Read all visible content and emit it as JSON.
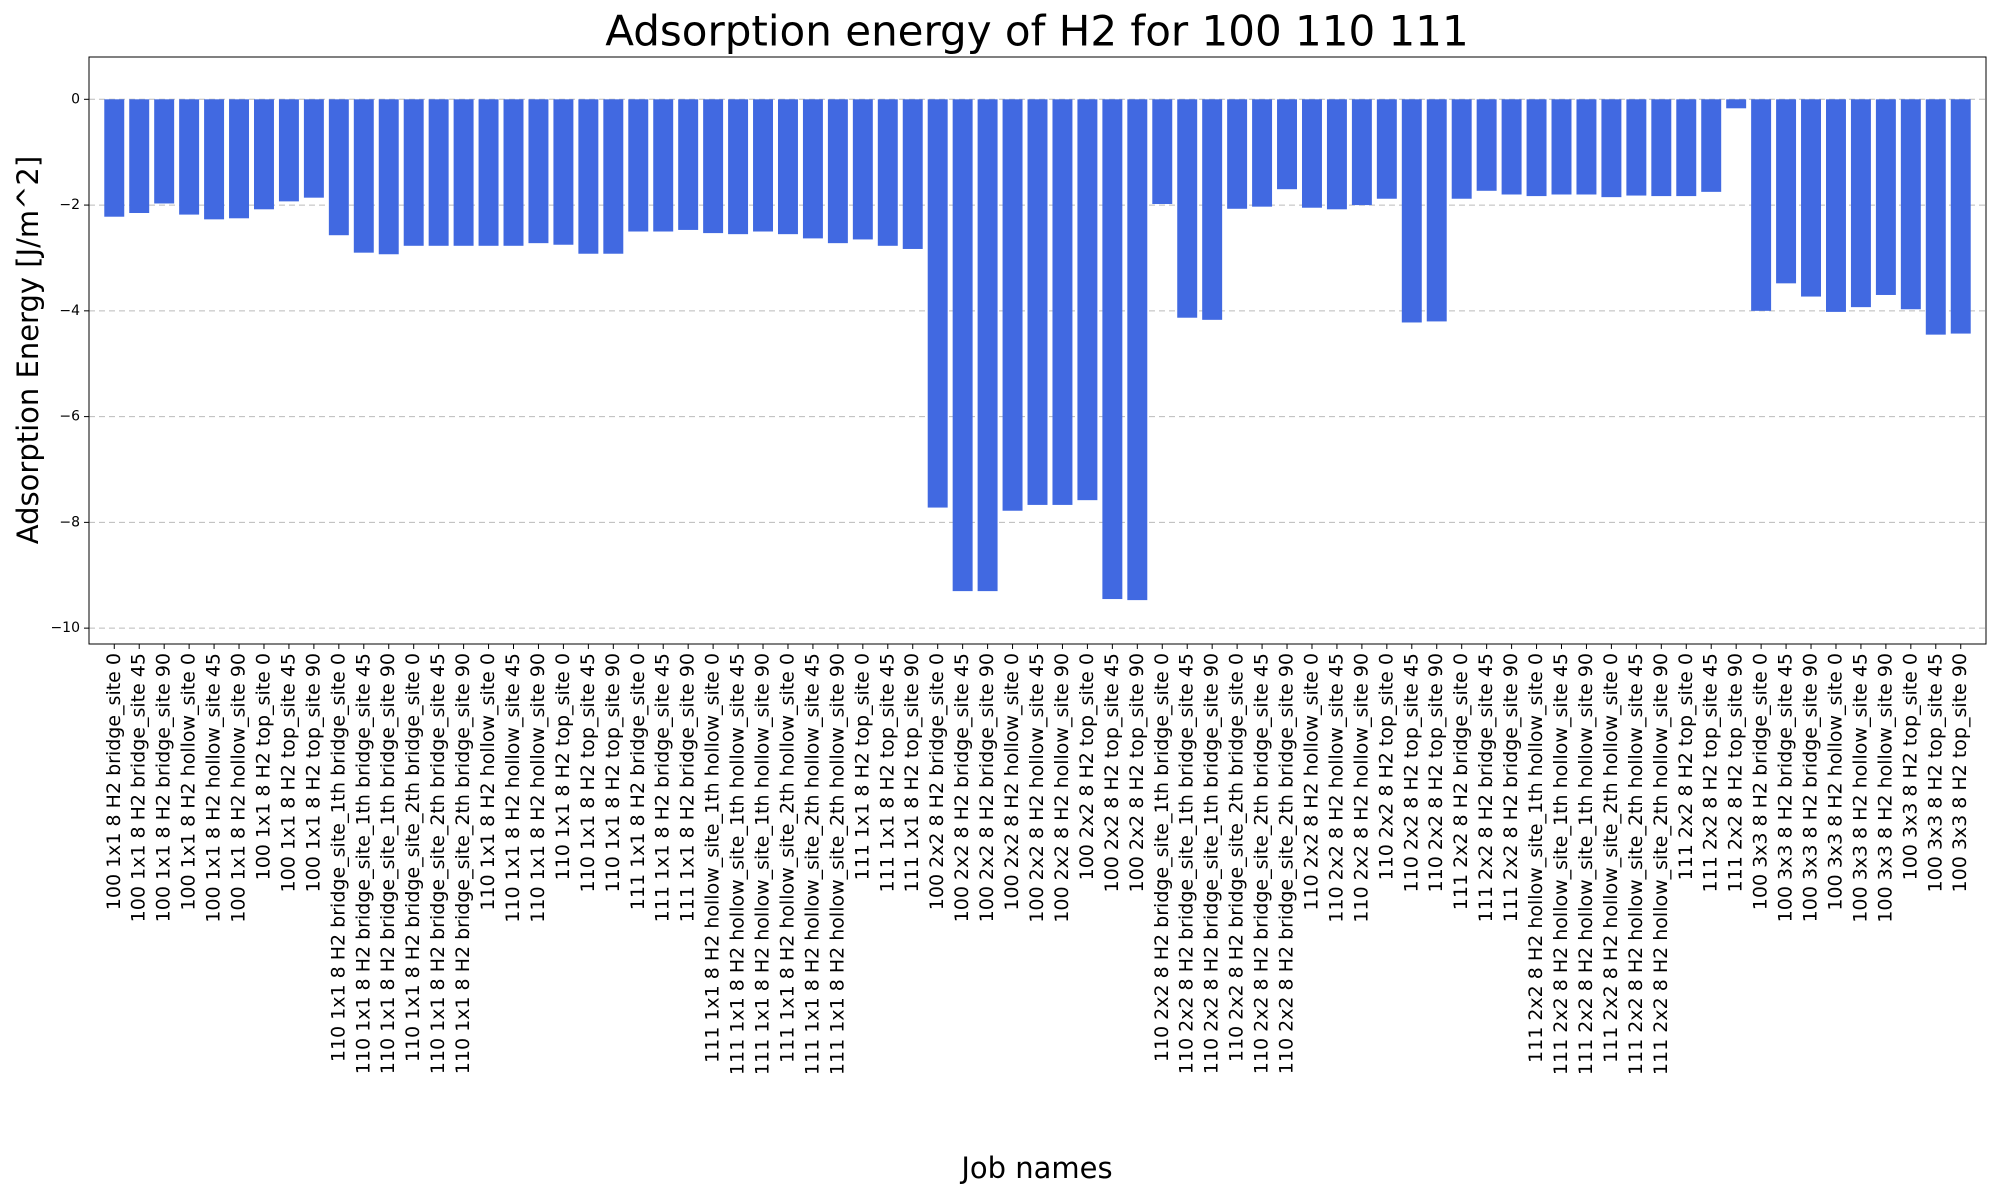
{
  "chart_data": {
    "type": "bar",
    "title": "Adsorption energy of H2 for 100 110 111",
    "x_label": "Job names",
    "y_label": "Adsorption Energy [J/m^2]",
    "categories": [
      "100 1x1 8 H2 bridge_site 0",
      "100 1x1 8 H2 bridge_site 45",
      "100 1x1 8 H2 bridge_site 90",
      "100 1x1 8 H2 hollow_site 0",
      "100 1x1 8 H2 hollow_site 45",
      "100 1x1 8 H2 hollow_site 90",
      "100 1x1 8 H2 top_site 0",
      "100 1x1 8 H2 top_site 45",
      "100 1x1 8 H2 top_site 90",
      "110 1x1 8 H2 bridge_site_1th bridge_site 0",
      "110 1x1 8 H2 bridge_site_1th bridge_site 45",
      "110 1x1 8 H2 bridge_site_1th bridge_site 90",
      "110 1x1 8 H2 bridge_site_2th bridge_site 0",
      "110 1x1 8 H2 bridge_site_2th bridge_site 45",
      "110 1x1 8 H2 bridge_site_2th bridge_site 90",
      "110 1x1 8 H2 hollow_site 0",
      "110 1x1 8 H2 hollow_site 45",
      "110 1x1 8 H2 hollow_site 90",
      "110 1x1 8 H2 top_site 0",
      "110 1x1 8 H2 top_site 45",
      "110 1x1 8 H2 top_site 90",
      "111 1x1 8 H2 bridge_site 0",
      "111 1x1 8 H2 bridge_site 45",
      "111 1x1 8 H2 bridge_site 90",
      "111 1x1 8 H2 hollow_site_1th hollow_site 0",
      "111 1x1 8 H2 hollow_site_1th hollow_site 45",
      "111 1x1 8 H2 hollow_site_1th hollow_site 90",
      "111 1x1 8 H2 hollow_site_2th hollow_site 0",
      "111 1x1 8 H2 hollow_site_2th hollow_site 45",
      "111 1x1 8 H2 hollow_site_2th hollow_site 90",
      "111 1x1 8 H2 top_site 0",
      "111 1x1 8 H2 top_site 45",
      "111 1x1 8 H2 top_site 90",
      "100 2x2 8 H2 bridge_site 0",
      "100 2x2 8 H2 bridge_site 45",
      "100 2x2 8 H2 bridge_site 90",
      "100 2x2 8 H2 hollow_site 0",
      "100 2x2 8 H2 hollow_site 45",
      "100 2x2 8 H2 hollow_site 90",
      "100 2x2 8 H2 top_site 0",
      "100 2x2 8 H2 top_site 45",
      "100 2x2 8 H2 top_site 90",
      "110 2x2 8 H2 bridge_site_1th bridge_site 0",
      "110 2x2 8 H2 bridge_site_1th bridge_site 45",
      "110 2x2 8 H2 bridge_site_1th bridge_site 90",
      "110 2x2 8 H2 bridge_site_2th bridge_site 0",
      "110 2x2 8 H2 bridge_site_2th bridge_site 45",
      "110 2x2 8 H2 bridge_site_2th bridge_site 90",
      "110 2x2 8 H2 hollow_site 0",
      "110 2x2 8 H2 hollow_site 45",
      "110 2x2 8 H2 hollow_site 90",
      "110 2x2 8 H2 top_site 0",
      "110 2x2 8 H2 top_site 45",
      "110 2x2 8 H2 top_site 90",
      "111 2x2 8 H2 bridge_site 0",
      "111 2x2 8 H2 bridge_site 45",
      "111 2x2 8 H2 bridge_site 90",
      "111 2x2 8 H2 hollow_site_1th hollow_site 0",
      "111 2x2 8 H2 hollow_site_1th hollow_site 45",
      "111 2x2 8 H2 hollow_site_1th hollow_site 90",
      "111 2x2 8 H2 hollow_site_2th hollow_site 0",
      "111 2x2 8 H2 hollow_site_2th hollow_site 45",
      "111 2x2 8 H2 hollow_site_2th hollow_site 90",
      "111 2x2 8 H2 top_site 0",
      "111 2x2 8 H2 top_site 45",
      "111 2x2 8 H2 top_site 90",
      "100 3x3 8 H2 bridge_site 0",
      "100 3x3 8 H2 bridge_site 45",
      "100 3x3 8 H2 bridge_site 90",
      "100 3x3 8 H2 hollow_site 0",
      "100 3x3 8 H2 hollow_site 45",
      "100 3x3 8 H2 hollow_site 90",
      "100 3x3 8 H2 top_site 0",
      "100 3x3 8 H2 top_site 45",
      "100 3x3 8 H2 top_site 90"
    ],
    "values": [
      -2.22,
      -2.15,
      -1.97,
      -2.18,
      -2.27,
      -2.25,
      -2.08,
      -1.93,
      -1.86,
      -2.57,
      -2.9,
      -2.93,
      -2.77,
      -2.77,
      -2.77,
      -2.77,
      -2.77,
      -2.72,
      -2.75,
      -2.92,
      -2.92,
      -2.5,
      -2.5,
      -2.47,
      -2.53,
      -2.55,
      -2.5,
      -2.55,
      -2.63,
      -2.72,
      -2.65,
      -2.77,
      -2.83,
      -7.72,
      -9.3,
      -9.3,
      -7.78,
      -7.67,
      -7.67,
      -7.58,
      -9.45,
      -9.47,
      -1.98,
      -4.13,
      -4.17,
      -2.07,
      -2.03,
      -1.7,
      -2.05,
      -2.08,
      -2.0,
      -1.88,
      -4.22,
      -4.2,
      -1.88,
      -1.73,
      -1.8,
      -1.83,
      -1.8,
      -1.8,
      -1.85,
      -1.82,
      -1.83,
      -1.83,
      -1.75,
      -0.17,
      -4.0,
      -3.48,
      -3.73,
      -4.02,
      -3.93,
      -3.7,
      -3.97,
      -4.45,
      -4.43
    ],
    "color": "#4169e1",
    "ylim": [
      -10.3,
      0.8
    ],
    "yticks": [
      {
        "value": -10,
        "label": "−10"
      },
      {
        "value": -8,
        "label": "−8"
      },
      {
        "value": -6,
        "label": "−6"
      },
      {
        "value": -4,
        "label": "−4"
      },
      {
        "value": -2,
        "label": "−2"
      },
      0
    ],
    "grid": true
  }
}
